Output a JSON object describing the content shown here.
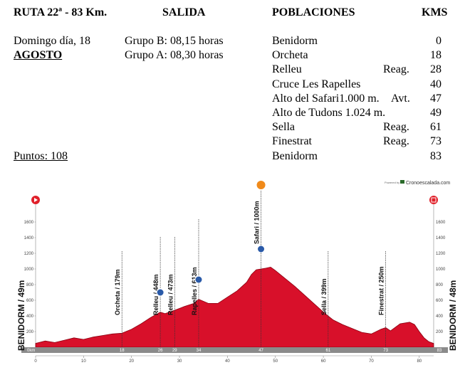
{
  "header": {
    "route": "RUTA 22ª - 83 Km.",
    "salida": "SALIDA",
    "poblaciones": "POBLACIONES",
    "kms": "KMS"
  },
  "info": {
    "date": "Domingo día, 18",
    "month": "AGOSTO",
    "group_b": "Grupo B: 08,15 horas",
    "group_a": "Grupo A: 08,30 horas",
    "points": "Puntos: 108"
  },
  "towns": [
    {
      "name": "Benidorm",
      "note": "",
      "km": "0"
    },
    {
      "name": "Orcheta",
      "note": "",
      "km": "18"
    },
    {
      "name": "Relleu",
      "note": "Reag.",
      "km": "28"
    },
    {
      "name": "Cruce Les Rapelles",
      "note": "",
      "km": "40"
    },
    {
      "name": "Alto del Safari1.000 m.",
      "note": "Avt.",
      "km": "47"
    },
    {
      "name": "Alto de Tudons 1.024 m.",
      "note": "",
      "km": "49"
    },
    {
      "name": "Sella",
      "note": "Reag.",
      "km": "61"
    },
    {
      "name": "Finestrat",
      "note": "Reag.",
      "km": "73"
    },
    {
      "name": "Benidorm",
      "note": "",
      "km": "83"
    }
  ],
  "profile": {
    "start_label": "BENIDORM / 49m",
    "end_label": "BENIDORM / 48m",
    "powered_by": "Powered by",
    "brand": "Cronoescalada.com",
    "fill_color": "#d8102a",
    "y_ticks": [
      "200",
      "400",
      "600",
      "800",
      "1000",
      "1200",
      "1400",
      "1600"
    ],
    "x_ticks": [
      "0",
      "10",
      "20",
      "30",
      "40",
      "50",
      "60",
      "70",
      "80"
    ],
    "waypoints": [
      {
        "label": "Orcheta / 179m",
        "km": 18,
        "elev": 179,
        "km_label": "18"
      },
      {
        "label": "Relleu / 448m",
        "km": 26,
        "elev": 448,
        "km_label": "26"
      },
      {
        "label": "Relleu / 473m",
        "km": 29,
        "elev": 473,
        "km_label": "29"
      },
      {
        "label": "Rapelles / 613m",
        "km": 34,
        "elev": 613,
        "km_label": "34"
      },
      {
        "label": "Safari / 1000m",
        "km": 47,
        "elev": 1000,
        "km_label": "47"
      },
      {
        "label": "Sella / 399m",
        "km": 61,
        "elev": 399,
        "km_label": "61"
      },
      {
        "label": "Finestrat / 250m",
        "km": 73,
        "elev": 250,
        "km_label": "73"
      }
    ],
    "start_km_label": "0km",
    "end_km_label": "83",
    "elevation": [
      [
        0,
        49
      ],
      [
        2,
        80
      ],
      [
        4,
        60
      ],
      [
        6,
        90
      ],
      [
        8,
        120
      ],
      [
        10,
        100
      ],
      [
        12,
        130
      ],
      [
        14,
        150
      ],
      [
        16,
        170
      ],
      [
        18,
        179
      ],
      [
        20,
        230
      ],
      [
        22,
        300
      ],
      [
        24,
        380
      ],
      [
        26,
        448
      ],
      [
        27,
        430
      ],
      [
        29,
        473
      ],
      [
        31,
        520
      ],
      [
        33,
        560
      ],
      [
        34,
        613
      ],
      [
        36,
        560
      ],
      [
        38,
        560
      ],
      [
        40,
        640
      ],
      [
        42,
        720
      ],
      [
        44,
        830
      ],
      [
        45,
        930
      ],
      [
        46,
        990
      ],
      [
        47,
        1000
      ],
      [
        48,
        1010
      ],
      [
        49,
        1024
      ],
      [
        50,
        980
      ],
      [
        52,
        880
      ],
      [
        54,
        780
      ],
      [
        56,
        670
      ],
      [
        58,
        560
      ],
      [
        60,
        450
      ],
      [
        61,
        399
      ],
      [
        62,
        350
      ],
      [
        64,
        290
      ],
      [
        66,
        240
      ],
      [
        68,
        190
      ],
      [
        70,
        170
      ],
      [
        72,
        230
      ],
      [
        73,
        250
      ],
      [
        74,
        210
      ],
      [
        76,
        300
      ],
      [
        78,
        320
      ],
      [
        79,
        290
      ],
      [
        80,
        200
      ],
      [
        81,
        120
      ],
      [
        82,
        70
      ],
      [
        83,
        48
      ]
    ]
  }
}
